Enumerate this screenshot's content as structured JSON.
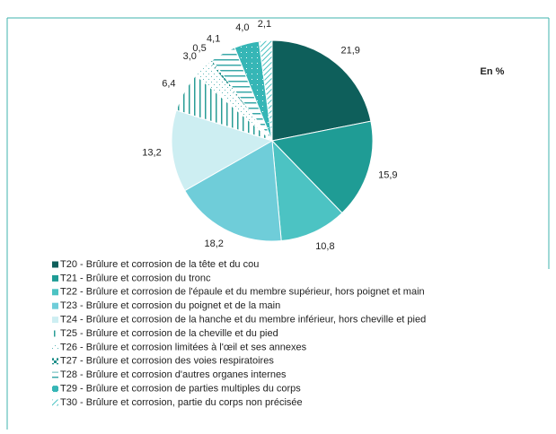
{
  "chart_data": {
    "type": "pie",
    "unit_label": "En %",
    "categories": [
      "T20 - Brûlure et corrosion de la tête et du cou",
      "T21 - Brûlure et corrosion du tronc",
      "T22 - Brûlure et corrosion de l'épaule et du membre supérieur, hors poignet et main",
      "T23 - Brûlure et corrosion du poignet et de la main",
      "T24 - Brûlure et corrosion de la hanche et du membre inférieur, hors cheville et pied",
      "T25 - Brûlure et corrosion de la cheville et du pied",
      "T26 - Brûlure et corrosion limitées à l'œil et ses annexes",
      "T27 - Brûlure et corrosion des voies respiratoires",
      "T28 - Brûlure et corrosion d'autres organes internes",
      "T29 - Brûlure et corrosion de parties multiples du corps",
      "T30 - Brûlure et corrosion, partie du corps non précisée"
    ],
    "values": [
      21.9,
      15.9,
      10.8,
      18.2,
      13.2,
      6.4,
      3.0,
      0.5,
      4.1,
      4.0,
      2.1
    ],
    "value_labels": [
      "21,9",
      "15,9",
      "10,8",
      "18,2",
      "13,2",
      "6,4",
      "3,0",
      "0,5",
      "4,1",
      "4,0",
      "2,1"
    ],
    "colors": [
      "#0e5f5b",
      "#1f9c95",
      "#4cc3c3",
      "#6fcdd9",
      "#cdeef2",
      "#2a9d96",
      "#5fb8b8",
      "#1f8f8a",
      "#3aa8a8",
      "#36b6b6",
      "#4cc3c3"
    ],
    "patterns": [
      "solid",
      "solid",
      "solid",
      "solid",
      "solid",
      "vlines",
      "dots",
      "checker",
      "hlines",
      "squares",
      "diag"
    ]
  }
}
